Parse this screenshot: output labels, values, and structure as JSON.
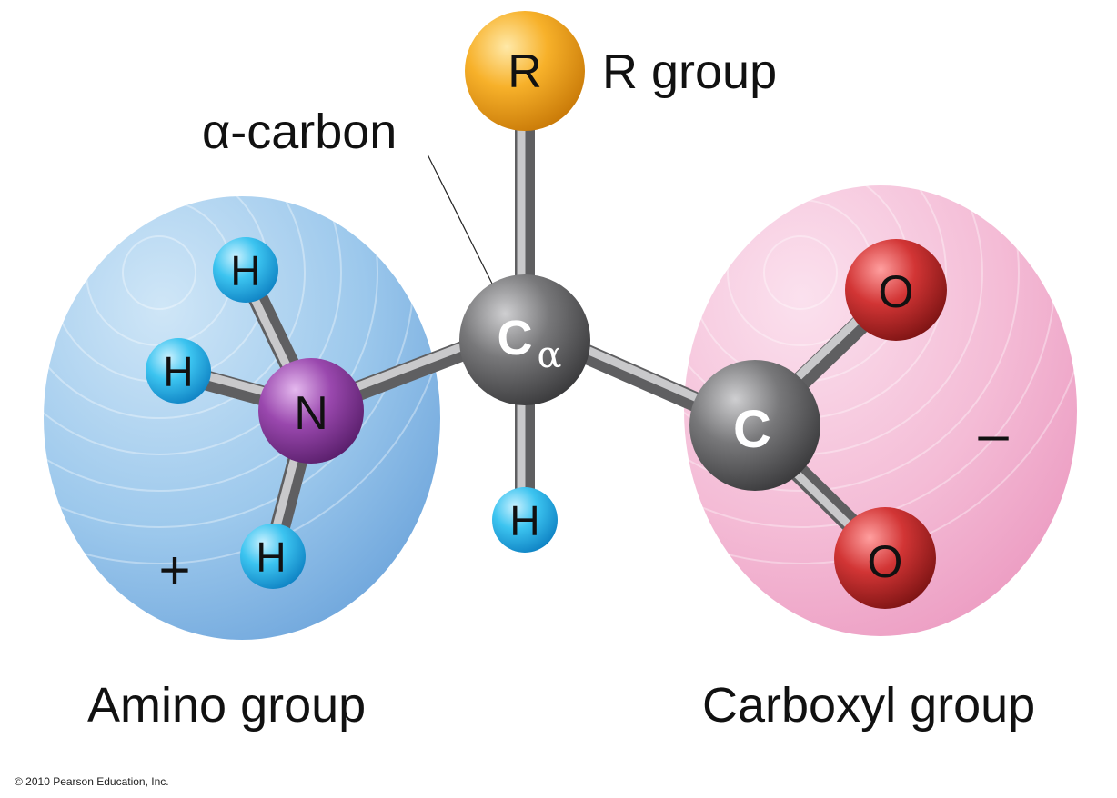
{
  "labels": {
    "alpha_carbon": "α-carbon",
    "r_group": "R group",
    "amino_group": "Amino group",
    "carboxyl_group": "Carboxyl group",
    "plus": "+",
    "minus": "–",
    "copyright": "© 2010 Pearson Education, Inc."
  },
  "atoms": {
    "r": "R",
    "n": "N",
    "h": "H",
    "o": "O",
    "c": "C",
    "ca_main": "C",
    "ca_sub": "α"
  },
  "colors": {
    "amino_region": "#8fc0e8",
    "carboxyl_region": "#f2b3d0",
    "hydrogen": "#2fb8ec",
    "nitrogen": "#8a3d9c",
    "oxygen": "#cc2a2a",
    "carbon": "#6e6e70",
    "r_group": "#f5a81e",
    "bond": "#9a9a9c"
  }
}
